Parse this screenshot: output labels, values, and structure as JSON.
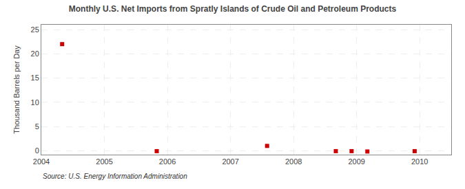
{
  "chart_data": {
    "type": "scatter",
    "title": "Monthly U.S. Net Imports from Spratly Islands of Crude Oil and Petroleum Products",
    "ylabel": "Thousand Barrels per Day",
    "annotations": [
      "Source: U.S. Energy Information Administration"
    ],
    "x": [
      2004.33,
      2005.83,
      2007.58,
      2008.67,
      2008.92,
      2009.17,
      2009.92
    ],
    "values": [
      22,
      -0.08,
      1.0,
      -0.08,
      -0.08,
      -0.15,
      -0.08
    ],
    "color": "#cc0000",
    "marker": "square",
    "xlim": [
      2004,
      2010.5
    ],
    "ylim": [
      -0.8,
      26
    ],
    "xticks": [
      2004,
      2005,
      2006,
      2007,
      2008,
      2009,
      2010
    ],
    "yticks": [
      0,
      5,
      10,
      15,
      20,
      25
    ],
    "grid": true
  }
}
